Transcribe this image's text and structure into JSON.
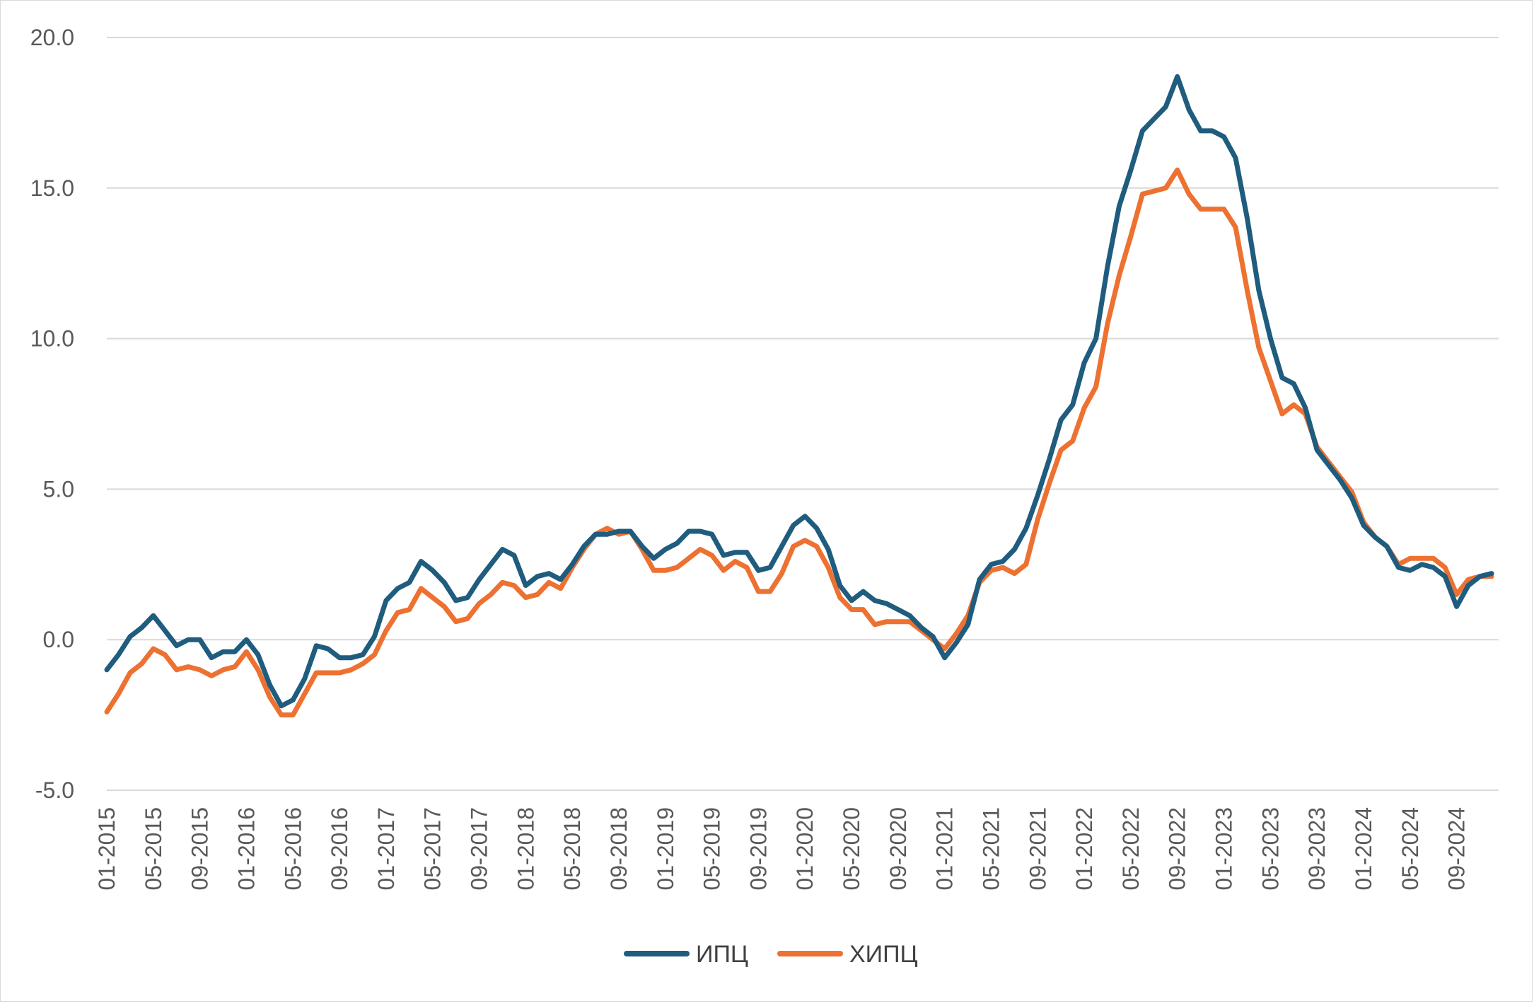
{
  "chart_data": {
    "type": "line",
    "grid": true,
    "legend_position": "bottom",
    "ylim": [
      -5,
      20
    ],
    "y_ticks": [
      "20.0",
      "15.0",
      "10.0",
      "5.0",
      "0.0",
      "-5.0"
    ],
    "x_tick_labels": [
      "01-2015",
      "05-2015",
      "09-2015",
      "01-2016",
      "05-2016",
      "09-2016",
      "01-2017",
      "05-2017",
      "09-2017",
      "01-2018",
      "05-2018",
      "09-2018",
      "01-2019",
      "05-2019",
      "09-2019",
      "01-2020",
      "05-2020",
      "09-2020",
      "01-2021",
      "05-2021",
      "09-2021",
      "01-2022",
      "05-2022",
      "09-2022",
      "01-2023",
      "05-2023",
      "09-2023",
      "01-2024",
      "05-2024",
      "09-2024"
    ],
    "x_start": "2015-01",
    "x_end": "2024-12",
    "series": [
      {
        "name": "ИПЦ",
        "color": "#1F5C7E",
        "values": [
          -1.0,
          -0.5,
          0.1,
          0.4,
          0.8,
          0.3,
          -0.2,
          0.0,
          0.0,
          -0.6,
          -0.4,
          -0.4,
          0.0,
          -0.5,
          -1.5,
          -2.2,
          -2.0,
          -1.3,
          -0.2,
          -0.3,
          -0.6,
          -0.6,
          -0.5,
          0.1,
          1.3,
          1.7,
          1.9,
          2.6,
          2.3,
          1.9,
          1.3,
          1.4,
          2.0,
          2.5,
          3.0,
          2.8,
          1.8,
          2.1,
          2.2,
          2.0,
          2.5,
          3.1,
          3.5,
          3.5,
          3.6,
          3.6,
          3.1,
          2.7,
          3.0,
          3.2,
          3.6,
          3.6,
          3.5,
          2.8,
          2.9,
          2.9,
          2.3,
          2.4,
          3.1,
          3.8,
          4.1,
          3.7,
          3.0,
          1.8,
          1.3,
          1.6,
          1.3,
          1.2,
          1.0,
          0.8,
          0.4,
          0.1,
          -0.6,
          -0.1,
          0.5,
          2.0,
          2.5,
          2.6,
          3.0,
          3.7,
          4.8,
          6.0,
          7.3,
          7.8,
          9.2,
          10.0,
          12.4,
          14.4,
          15.6,
          16.9,
          17.3,
          17.7,
          18.7,
          17.6,
          16.9,
          16.9,
          16.7,
          16.0,
          14.0,
          11.6,
          10.0,
          8.7,
          8.5,
          7.7,
          6.3,
          5.8,
          5.3,
          4.7,
          3.8,
          3.4,
          3.1,
          2.4,
          2.3,
          2.5,
          2.4,
          2.1,
          1.1,
          1.8,
          2.1,
          2.2
        ]
      },
      {
        "name": "ХИПЦ",
        "color": "#ED7131",
        "values": [
          -2.4,
          -1.8,
          -1.1,
          -0.8,
          -0.3,
          -0.5,
          -1.0,
          -0.9,
          -1.0,
          -1.2,
          -1.0,
          -0.9,
          -0.4,
          -1.0,
          -1.9,
          -2.5,
          -2.5,
          -1.8,
          -1.1,
          -1.1,
          -1.1,
          -1.0,
          -0.8,
          -0.5,
          0.3,
          0.9,
          1.0,
          1.7,
          1.4,
          1.1,
          0.6,
          0.7,
          1.2,
          1.5,
          1.9,
          1.8,
          1.4,
          1.5,
          1.9,
          1.7,
          2.4,
          3.0,
          3.5,
          3.7,
          3.5,
          3.6,
          3.0,
          2.3,
          2.3,
          2.4,
          2.7,
          3.0,
          2.8,
          2.3,
          2.6,
          2.4,
          1.6,
          1.6,
          2.2,
          3.1,
          3.3,
          3.1,
          2.4,
          1.4,
          1.0,
          1.0,
          0.5,
          0.6,
          0.6,
          0.6,
          0.3,
          0.0,
          -0.3,
          0.2,
          0.8,
          1.9,
          2.3,
          2.4,
          2.2,
          2.5,
          4.0,
          5.2,
          6.3,
          6.6,
          7.7,
          8.4,
          10.5,
          12.1,
          13.4,
          14.8,
          14.9,
          15.0,
          15.6,
          14.8,
          14.3,
          14.3,
          14.3,
          13.7,
          11.6,
          9.7,
          8.6,
          7.5,
          7.8,
          7.5,
          6.4,
          5.9,
          5.4,
          4.9,
          3.9,
          3.4,
          3.1,
          2.5,
          2.7,
          2.7,
          2.7,
          2.4,
          1.5,
          2.0,
          2.1,
          2.1
        ]
      }
    ]
  }
}
